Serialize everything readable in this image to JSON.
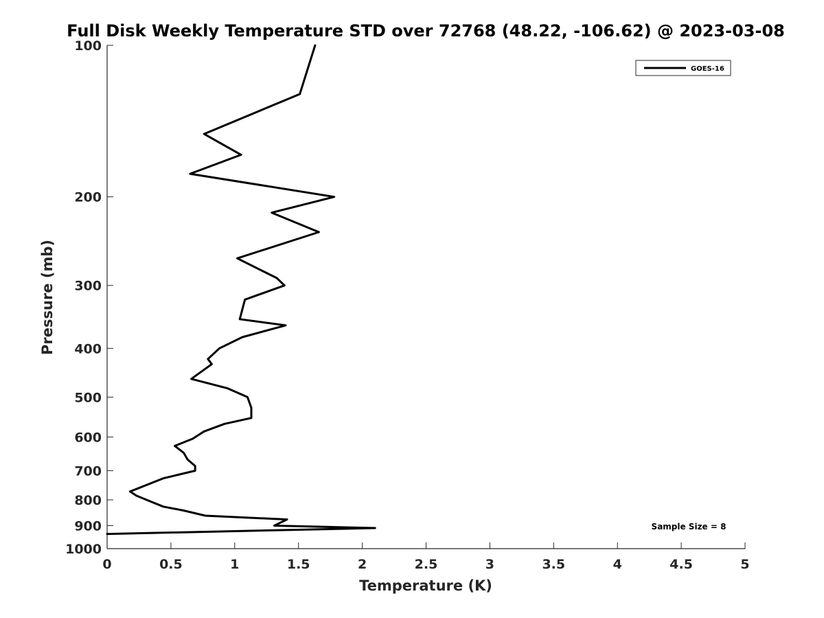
{
  "chart_data": {
    "type": "line",
    "title": "Full Disk Weekly Temperature STD over 72768 (48.22, -106.62) @ 2023-03-08",
    "xlabel": "Temperature (K)",
    "ylabel": "Pressure (mb)",
    "xlim": [
      0,
      5
    ],
    "ylim": [
      100,
      1000
    ],
    "y_scale": "log",
    "y_reversed": true,
    "x_ticks": [
      "0",
      "0.5",
      "1",
      "1.5",
      "2",
      "2.5",
      "3",
      "3.5",
      "4",
      "4.5",
      "5"
    ],
    "y_ticks": [
      "100",
      "200",
      "300",
      "400",
      "500",
      "600",
      "700",
      "800",
      "900",
      "1000"
    ],
    "legend": {
      "placement": "top-right",
      "entries": [
        "GOES-16"
      ]
    },
    "annotation": "Sample Size = 8",
    "grid": false,
    "series": [
      {
        "name": "GOES-16",
        "color": "#000000",
        "x": [
          1.63,
          1.51,
          0.76,
          1.05,
          0.65,
          1.78,
          1.29,
          1.66,
          1.02,
          1.33,
          1.39,
          1.08,
          1.04,
          1.4,
          1.06,
          0.88,
          0.79,
          0.82,
          0.66,
          0.94,
          1.1,
          1.13,
          1.13,
          0.92,
          0.76,
          0.67,
          0.53,
          0.6,
          0.63,
          0.69,
          0.69,
          0.44,
          0.18,
          0.23,
          0.31,
          0.44,
          0.6,
          0.77,
          1.41,
          1.31,
          2.1,
          0.0
        ],
        "y": [
          100,
          125,
          150,
          165,
          180,
          200,
          215,
          235,
          265,
          290,
          300,
          320,
          350,
          360,
          380,
          400,
          420,
          430,
          460,
          480,
          500,
          525,
          550,
          565,
          585,
          605,
          625,
          645,
          665,
          685,
          700,
          725,
          770,
          785,
          800,
          825,
          840,
          860,
          875,
          900,
          910,
          935
        ]
      }
    ]
  }
}
